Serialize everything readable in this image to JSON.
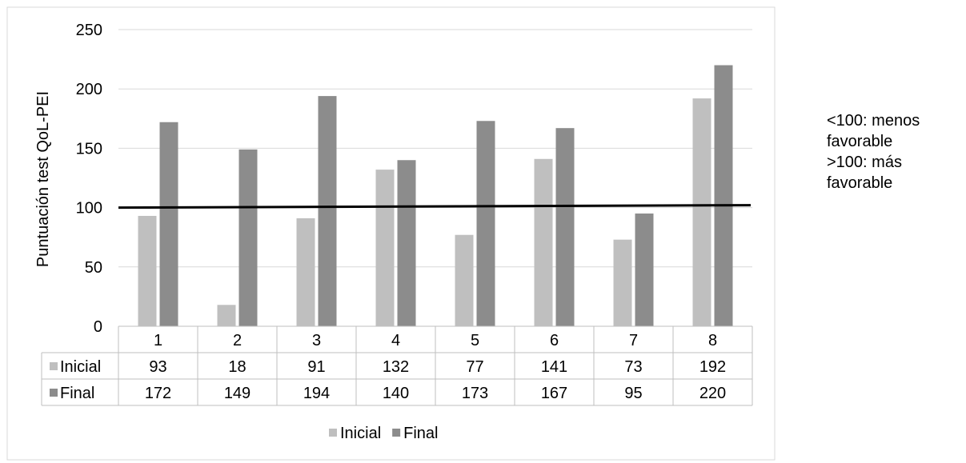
{
  "chart_data": {
    "type": "bar",
    "title": "",
    "xlabel": "",
    "ylabel": "Puntuación test QoL-PEI",
    "ylim": [
      0,
      250
    ],
    "yticks": [
      0,
      50,
      100,
      150,
      200,
      250
    ],
    "grid": true,
    "legend_position": "bottom",
    "categories": [
      "1",
      "2",
      "3",
      "4",
      "5",
      "6",
      "7",
      "8"
    ],
    "series": [
      {
        "name": "Inicial",
        "color": "#bfbfbf",
        "values": [
          93,
          18,
          91,
          132,
          77,
          141,
          73,
          192
        ]
      },
      {
        "name": "Final",
        "color": "#8c8c8c",
        "values": [
          172,
          149,
          194,
          140,
          173,
          167,
          95,
          220
        ]
      }
    ],
    "reference_line": {
      "value": 100,
      "color": "#000000"
    },
    "data_table": true
  },
  "annotation": {
    "lines": [
      "<100: menos",
      "favorable",
      ">100: más",
      "favorable"
    ]
  }
}
